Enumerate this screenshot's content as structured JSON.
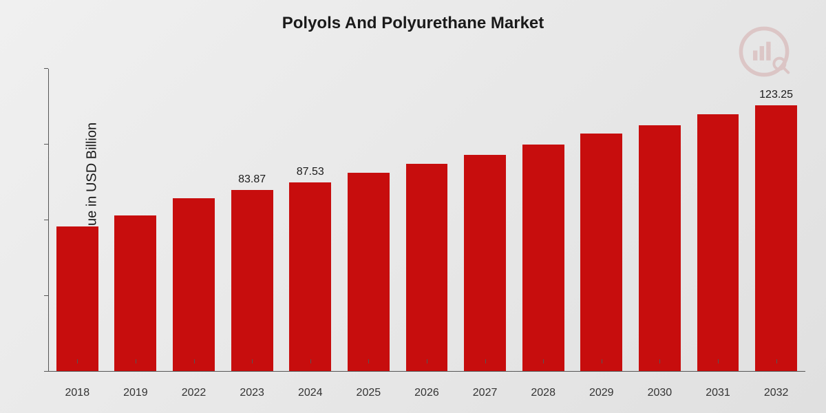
{
  "chart": {
    "type": "bar",
    "title": "Polyols And Polyurethane Market",
    "title_fontsize": 24,
    "ylabel": "Market Value in USD Billion",
    "ylabel_fontsize": 20,
    "categories": [
      "2018",
      "2019",
      "2022",
      "2023",
      "2024",
      "2025",
      "2026",
      "2027",
      "2028",
      "2029",
      "2030",
      "2031",
      "2032"
    ],
    "values": [
      67,
      72,
      80,
      83.87,
      87.53,
      92,
      96,
      100,
      105,
      110,
      114,
      119,
      123.25
    ],
    "value_labels": [
      "",
      "",
      "",
      "83.87",
      "87.53",
      "",
      "",
      "",
      "",
      "",
      "",
      "",
      "123.25"
    ],
    "ylim": [
      0,
      140
    ],
    "bar_color": "#c70d0d",
    "bar_width": 0.72,
    "background_gradient": [
      "#f0f0f0",
      "#e0e0e0"
    ],
    "axis_color": "#555555",
    "text_color": "#1a1a1a",
    "xtick_fontsize": 16,
    "value_label_fontsize": 16,
    "watermark_opacity": 0.18,
    "watermark_color": "#b03a3a"
  }
}
